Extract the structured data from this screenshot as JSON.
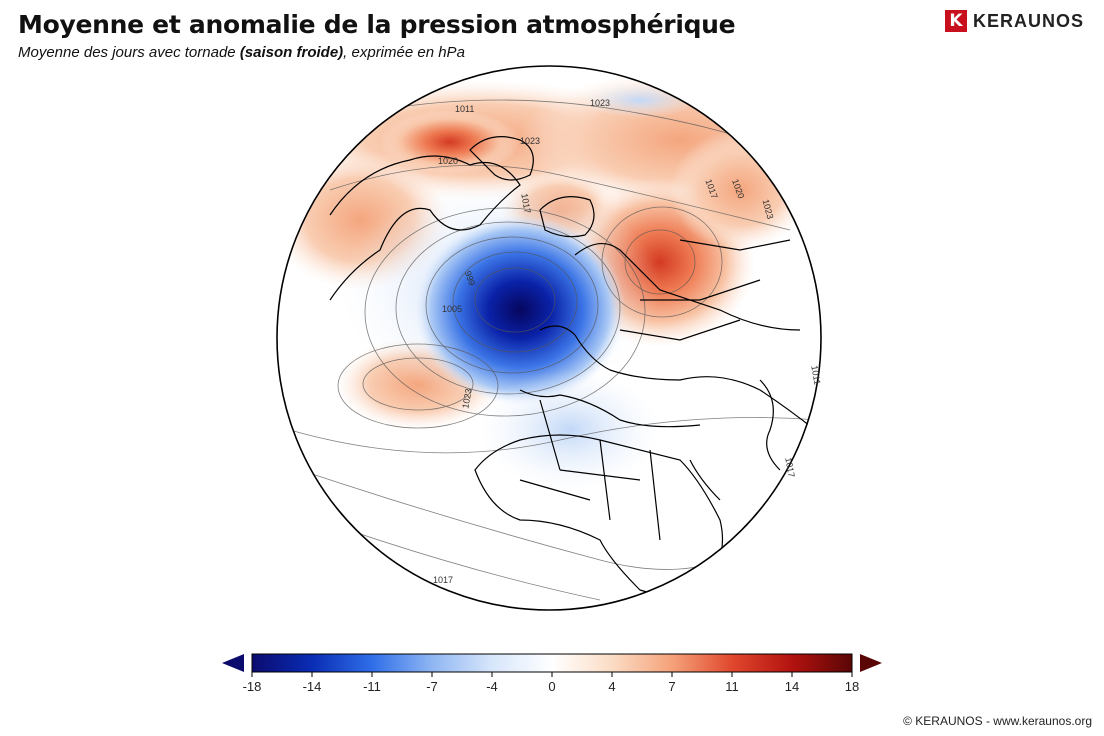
{
  "header": {
    "title": "Moyenne et anomalie de la pression atmosphérique",
    "subtitle_pre": "Moyenne des jours avec tornade ",
    "subtitle_bold": "(saison froide)",
    "subtitle_post": ", exprimée en hPa"
  },
  "brand": {
    "logo_letter": "K",
    "logo_text": "KERAUNOS"
  },
  "map": {
    "contour_labels": [
      "1011",
      "1023",
      "1020",
      "1023",
      "1017",
      "1020",
      "1023",
      "1017",
      "1011",
      "1017",
      "999",
      "1005",
      "1017",
      "1023"
    ]
  },
  "colorbar": {
    "ticks": [
      "-18",
      "-14",
      "-11",
      "-7",
      "-4",
      "0",
      "4",
      "7",
      "11",
      "14",
      "18"
    ],
    "colors": [
      "#0b0b6e",
      "#0a2db5",
      "#2f6ee8",
      "#8fb6f3",
      "#d7e6fb",
      "#ffffff",
      "#fbdcc5",
      "#f5a27a",
      "#e0482d",
      "#b3120f",
      "#5a0606"
    ]
  },
  "footer": {
    "copyright": "© KERAUNOS - www.keraunos.org"
  }
}
